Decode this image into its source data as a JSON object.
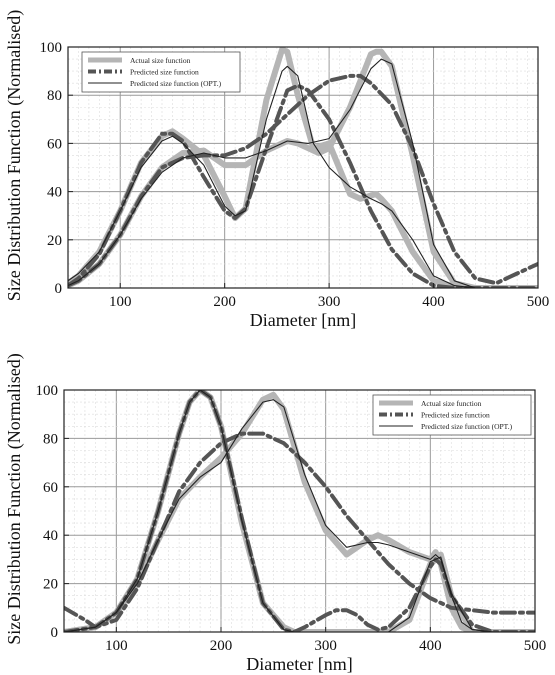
{
  "chart_data": [
    {
      "type": "line",
      "xlabel": "Diameter [nm]",
      "ylabel": "Size Distribution Function (Normalised)",
      "xlim": [
        50,
        500
      ],
      "ylim": [
        0,
        100
      ],
      "xticks": [
        100,
        200,
        300,
        400,
        500
      ],
      "yticks": [
        0,
        20,
        40,
        60,
        80,
        100
      ],
      "grid": true,
      "legend_position": "top-left",
      "series": [
        {
          "name": "Actual size function",
          "style": "thick-light-solid",
          "color": "#b5b5b5",
          "x": [
            50,
            60,
            80,
            100,
            120,
            140,
            150,
            160,
            180,
            200,
            210,
            220,
            240,
            255,
            260,
            270,
            285,
            300,
            320,
            330,
            345,
            350,
            360,
            380,
            400,
            420,
            440,
            460,
            480,
            500
          ],
          "y": [
            2,
            5,
            15,
            32,
            52,
            63,
            65,
            62,
            55,
            38,
            29,
            33,
            78,
            99,
            98,
            80,
            58,
            60,
            39,
            37,
            39,
            37,
            32,
            15,
            3,
            0.5,
            0,
            0,
            0,
            0
          ]
        },
        {
          "name": "Actual size function",
          "style": "thick-light-solid",
          "color": "#b5b5b5",
          "x": [
            50,
            60,
            80,
            100,
            120,
            140,
            160,
            180,
            200,
            220,
            240,
            260,
            270,
            280,
            290,
            300,
            320,
            340,
            345,
            350,
            360,
            380,
            400,
            420,
            440,
            460,
            480,
            500
          ],
          "y": [
            1,
            3,
            10,
            22,
            38,
            50,
            56,
            57,
            51,
            51,
            57,
            61,
            60,
            58,
            56,
            58,
            75,
            97,
            98,
            98,
            92,
            55,
            15,
            2,
            0,
            0,
            0,
            0
          ]
        },
        {
          "name": "Predicted size function",
          "style": "dash-dot",
          "color": "#555555",
          "x": [
            50,
            60,
            80,
            100,
            120,
            140,
            150,
            160,
            180,
            200,
            210,
            220,
            240,
            260,
            270,
            280,
            300,
            320,
            340,
            360,
            380,
            400,
            420,
            440,
            460,
            480,
            500
          ],
          "y": [
            1,
            4,
            14,
            32,
            52,
            64,
            64,
            61,
            46,
            32,
            29,
            33,
            58,
            82,
            84,
            82,
            70,
            52,
            32,
            16,
            6,
            1,
            0,
            0,
            0,
            0,
            0
          ]
        },
        {
          "name": "Predicted size function",
          "style": "dash-dot",
          "color": "#555555",
          "x": [
            50,
            60,
            80,
            100,
            120,
            140,
            160,
            180,
            200,
            220,
            240,
            260,
            280,
            300,
            320,
            330,
            340,
            360,
            380,
            400,
            420,
            440,
            460,
            480,
            500
          ],
          "y": [
            1,
            3,
            10,
            22,
            38,
            50,
            54,
            55,
            55,
            58,
            64,
            72,
            80,
            86,
            88,
            88,
            85,
            76,
            58,
            35,
            15,
            4,
            2,
            6,
            10
          ]
        },
        {
          "name": "Predicted size function (OPT.)",
          "style": "thin-solid",
          "color": "#222222",
          "x": [
            50,
            60,
            80,
            100,
            120,
            140,
            150,
            160,
            180,
            200,
            210,
            220,
            240,
            255,
            260,
            270,
            285,
            300,
            320,
            340,
            350,
            360,
            380,
            400,
            420,
            440,
            460,
            480,
            500
          ],
          "y": [
            3,
            6,
            15,
            32,
            50,
            61,
            63,
            60,
            51,
            34,
            30,
            32,
            70,
            90,
            92,
            88,
            60,
            50,
            42,
            37,
            35,
            32,
            20,
            5,
            1,
            0,
            0,
            0,
            0
          ]
        },
        {
          "name": "Predicted size function (OPT.)",
          "style": "thin-solid",
          "color": "#222222",
          "x": [
            50,
            60,
            80,
            100,
            120,
            140,
            160,
            180,
            200,
            220,
            240,
            260,
            280,
            300,
            320,
            340,
            350,
            360,
            380,
            400,
            420,
            440,
            460,
            480,
            500
          ],
          "y": [
            1,
            3,
            10,
            22,
            37,
            48,
            54,
            56,
            54,
            54,
            57,
            61,
            60,
            62,
            74,
            91,
            95,
            93,
            60,
            18,
            3,
            0,
            0,
            0,
            0
          ]
        }
      ]
    },
    {
      "type": "line",
      "xlabel": "Diameter [nm]",
      "ylabel": "Size Distribution Function (Normalised)",
      "xlim": [
        50,
        500
      ],
      "ylim": [
        0,
        100
      ],
      "xticks": [
        100,
        200,
        300,
        400,
        500
      ],
      "yticks": [
        0,
        20,
        40,
        60,
        80,
        100
      ],
      "grid": true,
      "legend_position": "top-right",
      "series": [
        {
          "name": "Actual size function",
          "style": "thick-light-solid",
          "color": "#b5b5b5",
          "x": [
            50,
            80,
            100,
            120,
            140,
            160,
            180,
            190,
            200,
            220,
            240,
            250,
            260,
            280,
            300,
            320,
            340,
            350,
            360,
            380,
            400,
            405,
            410,
            420,
            430,
            440,
            460,
            480,
            500
          ],
          "y": [
            0,
            2,
            8,
            20,
            38,
            55,
            64,
            68,
            72,
            82,
            96,
            98,
            92,
            62,
            42,
            32,
            38,
            40,
            38,
            33,
            30,
            33,
            28,
            10,
            2,
            0,
            0,
            0,
            0
          ]
        },
        {
          "name": "Actual size function",
          "style": "thick-light-solid",
          "color": "#b5b5b5",
          "x": [
            50,
            80,
            100,
            120,
            140,
            160,
            170,
            180,
            190,
            200,
            220,
            240,
            260,
            270,
            280,
            300,
            320,
            340,
            360,
            380,
            400,
            410,
            420,
            440,
            460,
            480,
            500
          ],
          "y": [
            0,
            2,
            8,
            22,
            50,
            82,
            95,
            100,
            97,
            85,
            45,
            12,
            2,
            0,
            0,
            0,
            0,
            0,
            0,
            5,
            28,
            32,
            15,
            0,
            0,
            0,
            0
          ]
        },
        {
          "name": "Predicted size function",
          "style": "dash-dot",
          "color": "#555555",
          "x": [
            50,
            80,
            100,
            120,
            140,
            160,
            170,
            180,
            190,
            200,
            220,
            240,
            260,
            270,
            280,
            300,
            310,
            320,
            330,
            340,
            350,
            360,
            380,
            400,
            405,
            410,
            420,
            440,
            460,
            480,
            500
          ],
          "y": [
            0,
            2,
            8,
            22,
            50,
            82,
            95,
            100,
            97,
            85,
            47,
            12,
            1,
            0,
            2,
            7,
            9,
            9,
            7,
            3,
            1,
            2,
            10,
            27,
            30,
            28,
            15,
            3,
            0,
            0,
            0
          ]
        },
        {
          "name": "Predicted size function",
          "style": "dash-dot",
          "color": "#555555",
          "x": [
            50,
            70,
            80,
            100,
            120,
            140,
            160,
            180,
            200,
            220,
            240,
            260,
            280,
            300,
            320,
            340,
            360,
            380,
            400,
            420,
            440,
            460,
            480,
            500
          ],
          "y": [
            10,
            5,
            2,
            5,
            18,
            38,
            58,
            70,
            78,
            82,
            82,
            78,
            70,
            60,
            48,
            38,
            28,
            20,
            14,
            10,
            9,
            8,
            8,
            8
          ]
        },
        {
          "name": "Predicted size function (OPT.)",
          "style": "thin-solid",
          "color": "#222222",
          "x": [
            50,
            80,
            100,
            120,
            140,
            160,
            180,
            200,
            220,
            240,
            250,
            260,
            280,
            300,
            320,
            340,
            350,
            360,
            380,
            400,
            405,
            410,
            420,
            430,
            440,
            460,
            480,
            500
          ],
          "y": [
            0,
            2,
            8,
            20,
            38,
            55,
            64,
            70,
            84,
            95,
            96,
            93,
            65,
            44,
            35,
            37,
            37,
            36,
            33,
            30,
            32,
            30,
            15,
            4,
            1,
            0,
            0,
            0
          ]
        },
        {
          "name": "Predicted size function (OPT.)",
          "style": "thin-solid",
          "color": "#222222",
          "x": [
            50,
            80,
            100,
            120,
            140,
            160,
            170,
            180,
            190,
            200,
            220,
            240,
            260,
            270,
            280,
            300,
            320,
            340,
            360,
            380,
            400,
            410,
            420,
            440,
            460,
            480,
            500
          ],
          "y": [
            0,
            2,
            8,
            22,
            50,
            82,
            95,
            100,
            97,
            85,
            46,
            12,
            1,
            0,
            0,
            0,
            0,
            0,
            0,
            6,
            29,
            31,
            16,
            1,
            0,
            0,
            0
          ]
        }
      ]
    }
  ]
}
